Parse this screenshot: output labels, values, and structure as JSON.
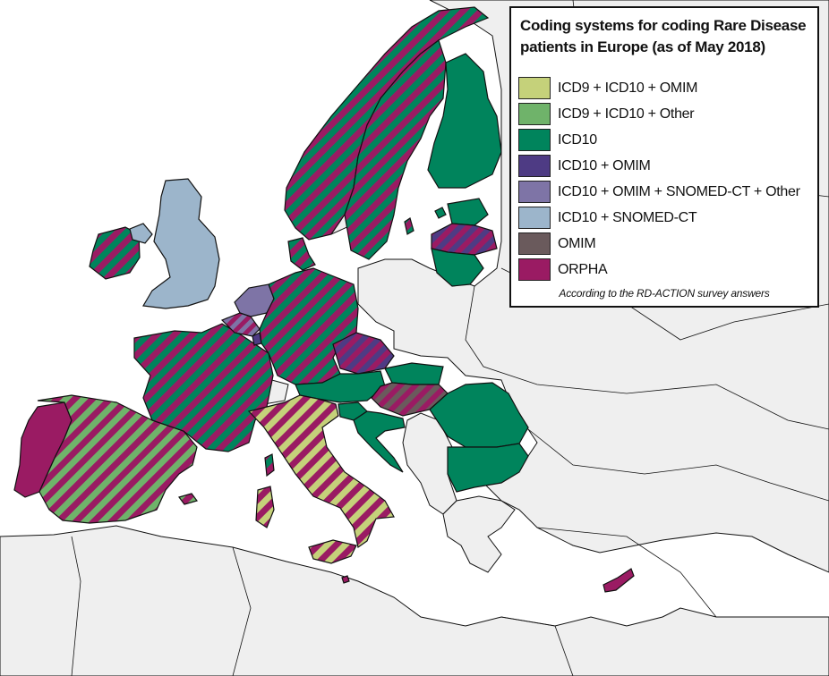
{
  "legend": {
    "title": "Coding systems for coding Rare Disease patients in Europe (as of May 2018)",
    "note": "According to the RD-ACTION survey answers",
    "items": [
      {
        "label": "ICD9 + ICD10 + OMIM",
        "color": "#c5d17a"
      },
      {
        "label": "ICD9 + ICD10 + Other",
        "color": "#6fb36a"
      },
      {
        "label": "ICD10",
        "color": "#00845c"
      },
      {
        "label": "ICD10 + OMIM",
        "color": "#4e3b84"
      },
      {
        "label": "ICD10 + OMIM + SNOMED-CT + Other",
        "color": "#7e74a6"
      },
      {
        "label": "ICD10 + SNOMED-CT",
        "color": "#9cb5cb"
      },
      {
        "label": "OMIM",
        "color": "#6a5a5c"
      },
      {
        "label": "ORPHA",
        "color": "#9a1b63"
      }
    ]
  },
  "colors": {
    "sea": "#ffffff",
    "non_participating_land": "#efefef",
    "border": "#111111"
  },
  "regions": [
    {
      "name": "Portugal",
      "coding": "ORPHA"
    },
    {
      "name": "Spain",
      "coding": "ICD9 + ICD10 + Other / ORPHA"
    },
    {
      "name": "France",
      "coding": "ICD10 / ORPHA"
    },
    {
      "name": "Ireland",
      "coding": "ICD10 / ORPHA"
    },
    {
      "name": "Northern Ireland",
      "coding": "ICD10 + SNOMED-CT"
    },
    {
      "name": "United Kingdom",
      "coding": "ICD10 + SNOMED-CT"
    },
    {
      "name": "Netherlands",
      "coding": "ICD10 + OMIM + SNOMED-CT + Other"
    },
    {
      "name": "Belgium",
      "coding": "ICD10 + OMIM + SNOMED-CT + Other / ORPHA"
    },
    {
      "name": "Luxembourg",
      "coding": "ICD10 + OMIM"
    },
    {
      "name": "Germany",
      "coding": "ICD10 / ORPHA"
    },
    {
      "name": "Denmark",
      "coding": "ICD10 / ORPHA"
    },
    {
      "name": "Norway",
      "coding": "ICD10 / ORPHA"
    },
    {
      "name": "Sweden",
      "coding": "ICD10 / ORPHA"
    },
    {
      "name": "Finland",
      "coding": "ICD10"
    },
    {
      "name": "Estonia",
      "coding": "ICD10"
    },
    {
      "name": "Latvia",
      "coding": "ICD10 + OMIM / ORPHA"
    },
    {
      "name": "Lithuania",
      "coding": "ICD10"
    },
    {
      "name": "Czech Republic",
      "coding": "ICD10 + OMIM / ORPHA"
    },
    {
      "name": "Austria",
      "coding": "ICD10"
    },
    {
      "name": "Slovakia",
      "coding": "ICD10"
    },
    {
      "name": "Hungary",
      "coding": "OMIM / ORPHA"
    },
    {
      "name": "Slovenia",
      "coding": "ICD10"
    },
    {
      "name": "Croatia",
      "coding": "ICD10"
    },
    {
      "name": "Romania",
      "coding": "ICD10"
    },
    {
      "name": "Bulgaria",
      "coding": "ICD10"
    },
    {
      "name": "Italy",
      "coding": "ICD9 + ICD10 + OMIM / ORPHA"
    },
    {
      "name": "Malta",
      "coding": "ORPHA"
    },
    {
      "name": "Cyprus",
      "coding": "ORPHA"
    }
  ]
}
